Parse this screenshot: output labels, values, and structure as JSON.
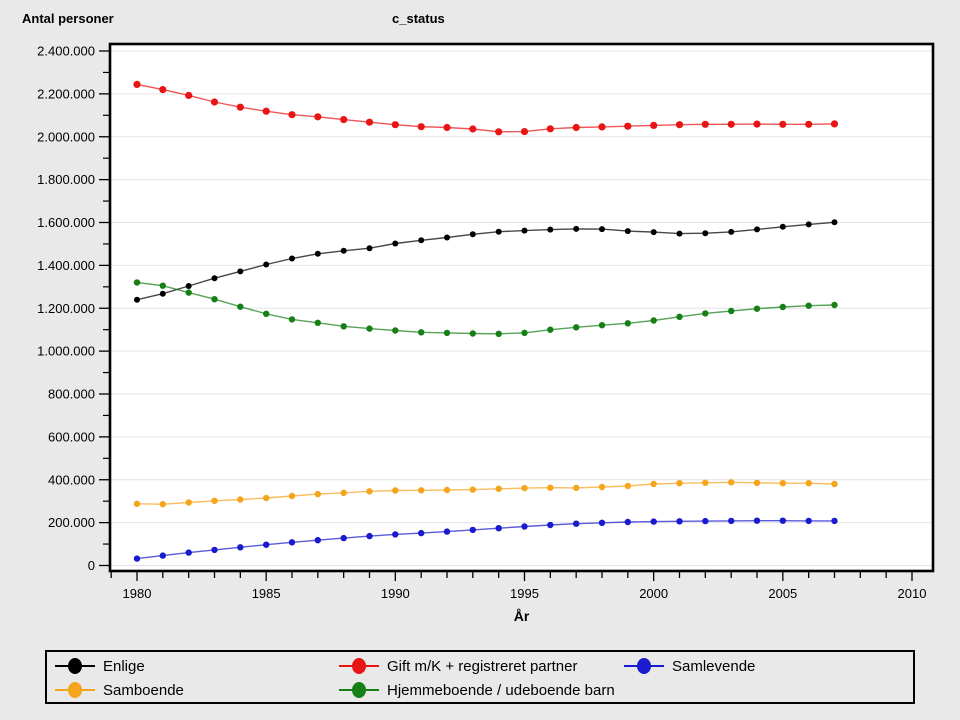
{
  "titles": {
    "left": "Antal personer",
    "center": "c_status"
  },
  "chart_data": {
    "type": "line",
    "title": "c_status",
    "ylabel": "Antal personer",
    "xlabel": "År",
    "xlim": [
      1979,
      2010.8
    ],
    "ylim": [
      0,
      2400000
    ],
    "grid": "horizontal-major",
    "legend_position": "bottom-box",
    "x_ticks": {
      "values": [
        1980,
        1985,
        1990,
        1995,
        2000,
        2005,
        2010
      ],
      "labels": [
        "1980",
        "1985",
        "1990",
        "1995",
        "2000",
        "2005",
        "2010"
      ],
      "minor_step_years": 1
    },
    "y_ticks": {
      "values": [
        0,
        200000,
        400000,
        600000,
        800000,
        1000000,
        1200000,
        1400000,
        1600000,
        1800000,
        2000000,
        2200000,
        2400000
      ],
      "labels": [
        "0",
        "200.000",
        "400.000",
        "600.000",
        "800.000",
        "1.000.000",
        "1.200.000",
        "1.400.000",
        "1.600.000",
        "1.800.000",
        "2.000.000",
        "2.200.000",
        "2.400.000"
      ],
      "minor_step": 100000
    },
    "x": [
      1980,
      1981,
      1982,
      1983,
      1984,
      1985,
      1986,
      1987,
      1988,
      1989,
      1990,
      1991,
      1992,
      1993,
      1994,
      1995,
      1996,
      1997,
      1998,
      1999,
      2000,
      2001,
      2002,
      2003,
      2004,
      2005,
      2006,
      2007
    ],
    "series": [
      {
        "name": "Enlige",
        "color": "#000000",
        "marker_r": 3.0,
        "values": [
          1240000,
          1268000,
          1304000,
          1340000,
          1372000,
          1404000,
          1432000,
          1454000,
          1468000,
          1480000,
          1502000,
          1517000,
          1530000,
          1545000,
          1557000,
          1562000,
          1567000,
          1570000,
          1569000,
          1560000,
          1555000,
          1548000,
          1550000,
          1556000,
          1568000,
          1580000,
          1591000,
          1601000
        ]
      },
      {
        "name": "Gift m/K + registreret partner",
        "color": "#e91515",
        "marker_r": 3.6,
        "values": [
          2244000,
          2220000,
          2193000,
          2162000,
          2138000,
          2119000,
          2103000,
          2093000,
          2080000,
          2068000,
          2056000,
          2047000,
          2043000,
          2036000,
          2023000,
          2024000,
          2037000,
          2043000,
          2046000,
          2049000,
          2053000,
          2056000,
          2058000,
          2058000,
          2059000,
          2058000,
          2058000,
          2060000
        ]
      },
      {
        "name": "Samlevende",
        "color": "#1a1ace",
        "marker_r": 3.2,
        "values": [
          32000,
          46000,
          60000,
          73000,
          85000,
          97000,
          108000,
          118000,
          128000,
          137000,
          145000,
          151000,
          158000,
          166000,
          174000,
          182000,
          189000,
          195000,
          199000,
          203000,
          205000,
          206000,
          207000,
          208000,
          209000,
          209000,
          208000,
          208000
        ]
      },
      {
        "name": "Samboende",
        "color": "#f5a41e",
        "marker_r": 3.2,
        "values": [
          288000,
          286000,
          294000,
          302000,
          308000,
          315000,
          324000,
          333000,
          339000,
          346000,
          350000,
          351000,
          352000,
          354000,
          358000,
          361000,
          363000,
          362000,
          366000,
          371000,
          380000,
          384000,
          386000,
          388000,
          386000,
          384000,
          384000,
          380000
        ]
      },
      {
        "name": "Hjemmeboende / udeboende barn",
        "color": "#168016",
        "marker_r": 3.2,
        "values": [
          1320000,
          1305000,
          1273000,
          1242000,
          1207000,
          1174000,
          1148000,
          1132000,
          1116000,
          1105000,
          1096000,
          1088000,
          1085000,
          1082000,
          1081000,
          1085000,
          1100000,
          1111000,
          1121000,
          1130000,
          1143000,
          1160000,
          1176000,
          1187000,
          1198000,
          1206000,
          1212000,
          1215000
        ]
      }
    ]
  },
  "colors": {
    "page_background": "#e9e9e9",
    "plot_background": "#ffffff",
    "gridline": "#e4e4e4",
    "frame": "#000000"
  }
}
